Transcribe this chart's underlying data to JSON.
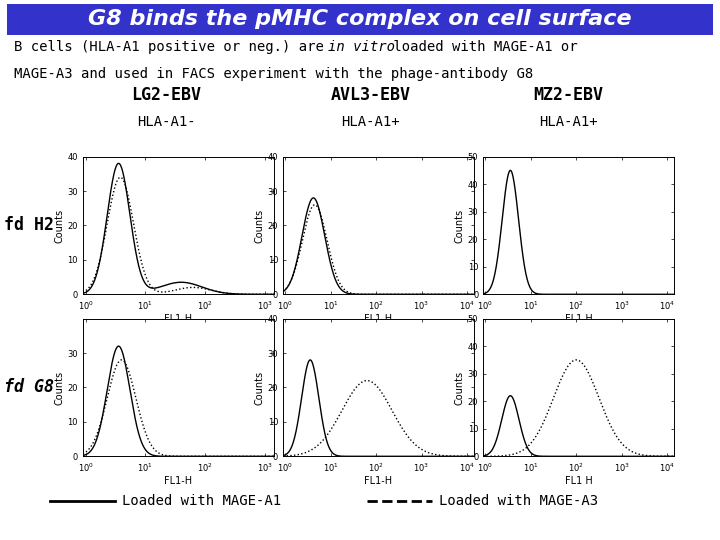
{
  "title": "G8 binds the pMHC complex on cell surface",
  "title_bg": "#3333cc",
  "title_color": "#ffffff",
  "col_headers": [
    "LG2-EBV",
    "AVL3-EBV",
    "MZ2-EBV"
  ],
  "col_subheaders": [
    "HLA-A1-",
    "HLA-A1+",
    "HLA-A1+"
  ],
  "row_labels": [
    "fd H2",
    "fd G8"
  ],
  "legend_entries": [
    "Loaded with MAGE-A1",
    "Loaded with MAGE-A3"
  ],
  "subtitle_normal1": "B cells (HLA-A1 positive or neg.) are ",
  "subtitle_italic": "in vitro",
  "subtitle_normal2": " loaded with MAGE-A1 or",
  "subtitle_line2": "MAGE-A3 and used in FACS experiment with the phage-antibody G8",
  "xlabel1": "FL1-H",
  "xlabel3": "FL1 H",
  "ylabel": "Counts",
  "title_fontsize": 16,
  "subtitle_fontsize": 10,
  "header_fontsize": 12,
  "subheader_fontsize": 10,
  "row_label_fontsize": 12,
  "tick_fontsize": 6,
  "axis_label_fontsize": 7,
  "legend_fontsize": 10
}
